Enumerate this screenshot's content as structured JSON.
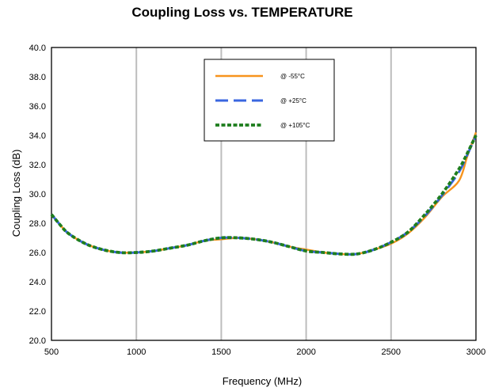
{
  "chart_data": {
    "type": "line",
    "title": "Coupling Loss vs. TEMPERATURE",
    "xlabel": "Frequency (MHz)",
    "ylabel": "Coupling Loss (dB)",
    "xlim": [
      500,
      3000
    ],
    "ylim": [
      20.0,
      40.0
    ],
    "x_ticks": [
      500,
      1000,
      1500,
      2000,
      2500,
      3000
    ],
    "x_tick_labels": [
      "500",
      "1000",
      "1500",
      "2000",
      "2500",
      "3000"
    ],
    "y_ticks": [
      20.0,
      22.0,
      24.0,
      26.0,
      28.0,
      30.0,
      32.0,
      34.0,
      36.0,
      38.0,
      40.0
    ],
    "y_tick_labels": [
      "20.0",
      "22.0",
      "24.0",
      "26.0",
      "28.0",
      "30.0",
      "32.0",
      "34.0",
      "36.0",
      "38.0",
      "40.0"
    ],
    "grid": "vertical",
    "legend_position": "top-center",
    "series": [
      {
        "name": "@ -55°C",
        "color": "#F7941D",
        "dash": "solid",
        "x": [
          500,
          550,
          600,
          700,
          800,
          900,
          1000,
          1100,
          1200,
          1300,
          1400,
          1500,
          1600,
          1700,
          1800,
          1900,
          2000,
          2100,
          2200,
          2300,
          2400,
          2500,
          2600,
          2700,
          2800,
          2900,
          2950,
          3000
        ],
        "y": [
          28.6,
          27.9,
          27.3,
          26.6,
          26.2,
          26.0,
          26.0,
          26.1,
          26.3,
          26.5,
          26.8,
          26.9,
          27.0,
          26.9,
          26.7,
          26.4,
          26.2,
          26.0,
          25.9,
          25.9,
          26.2,
          26.6,
          27.3,
          28.4,
          29.8,
          30.9,
          32.6,
          34.2
        ]
      },
      {
        "name": "@ +25°C",
        "color": "#3A66E0",
        "dash": "dashed",
        "x": [
          500,
          550,
          600,
          700,
          800,
          900,
          1000,
          1100,
          1200,
          1300,
          1400,
          1500,
          1600,
          1700,
          1800,
          1900,
          2000,
          2100,
          2200,
          2300,
          2400,
          2500,
          2600,
          2700,
          2800,
          2900,
          2950,
          3000
        ],
        "y": [
          28.6,
          27.9,
          27.3,
          26.6,
          26.2,
          26.0,
          26.0,
          26.1,
          26.3,
          26.5,
          26.8,
          27.0,
          27.0,
          26.9,
          26.7,
          26.4,
          26.1,
          26.0,
          25.9,
          25.9,
          26.2,
          26.7,
          27.4,
          28.5,
          29.9,
          31.5,
          32.7,
          34.0
        ]
      },
      {
        "name": "@ +105°C",
        "color": "#1E7E1E",
        "dash": "dotted",
        "x": [
          500,
          550,
          600,
          700,
          800,
          900,
          1000,
          1100,
          1200,
          1300,
          1400,
          1500,
          1600,
          1700,
          1800,
          1900,
          2000,
          2100,
          2200,
          2300,
          2400,
          2500,
          2600,
          2700,
          2800,
          2900,
          2950,
          3000
        ],
        "y": [
          28.6,
          27.9,
          27.3,
          26.6,
          26.2,
          26.0,
          26.0,
          26.1,
          26.3,
          26.5,
          26.8,
          27.0,
          27.0,
          26.9,
          26.7,
          26.4,
          26.1,
          26.0,
          25.9,
          25.9,
          26.2,
          26.7,
          27.4,
          28.6,
          30.0,
          31.7,
          32.8,
          34.0
        ]
      }
    ]
  }
}
